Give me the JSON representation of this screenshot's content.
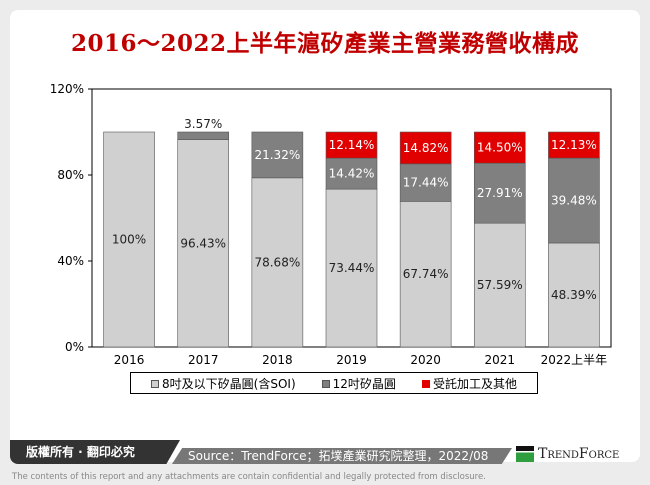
{
  "title": "2016～2022上半年滬矽產業主營業務營收構成",
  "chart_data": {
    "type": "bar",
    "stacked": true,
    "title": "2016～2022上半年滬矽產業主營業務營收構成",
    "categories": [
      "2016",
      "2017",
      "2018",
      "2019",
      "2020",
      "2021",
      "2022上半年"
    ],
    "ylim": [
      0,
      120
    ],
    "yticks": [
      "0%",
      "40%",
      "80%",
      "120%"
    ],
    "grid": false,
    "legend_position": "bottom",
    "series": [
      {
        "name": "8吋及以下矽晶圓(含SOI)",
        "color": "#d0d0d0",
        "values": [
          100,
          96.43,
          78.68,
          73.44,
          67.74,
          57.59,
          48.39
        ],
        "labels": [
          "100%",
          "96.43%",
          "78.68%",
          "73.44%",
          "67.74%",
          "57.59%",
          "48.39%"
        ]
      },
      {
        "name": "12吋矽晶圓",
        "color": "#808080",
        "values": [
          0,
          3.57,
          21.32,
          14.42,
          17.44,
          27.91,
          39.48
        ],
        "labels": [
          "",
          "3.57%",
          "21.32%",
          "14.42%",
          "17.44%",
          "27.91%",
          "39.48%"
        ]
      },
      {
        "name": "受託加工及其他",
        "color": "#e00000",
        "values": [
          0,
          0,
          0,
          12.14,
          14.82,
          14.5,
          12.13
        ],
        "labels": [
          "",
          "",
          "",
          "12.14%",
          "14.82%",
          "14.50%",
          "12.13%"
        ]
      }
    ]
  },
  "footer": {
    "copyright": "版權所有 · 翻印必究",
    "source": "Source：TrendForce；拓墣產業研究院整理，2022/08",
    "logo": "TrendForce",
    "disclaimer": "The contents of this report and any attachments are contain confidential and legally protected from disclosure."
  }
}
